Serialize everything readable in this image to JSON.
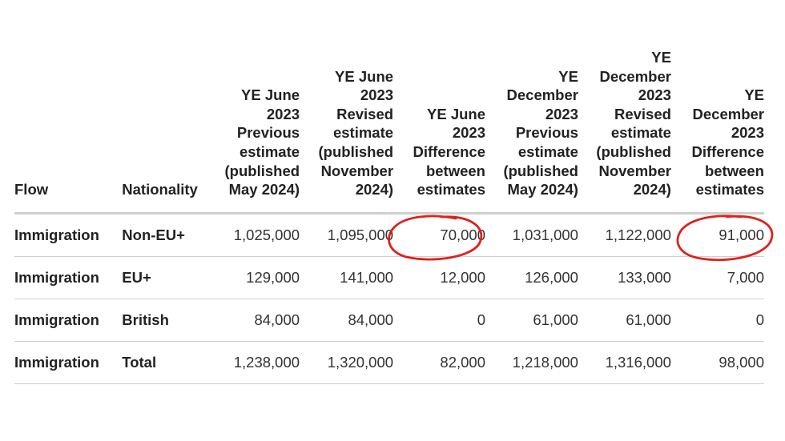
{
  "table": {
    "columns": [
      "Flow",
      "Nationality",
      "YE June 2023 Previous estimate (published May 2024)",
      "YE June 2023 Revised estimate (published November 2024)",
      "YE June 2023 Difference between estimates",
      "YE December 2023 Previous estimate (published May 2024)",
      "YE December 2023 Revised estimate (published November 2024)",
      "YE December 2023 Difference between estimates"
    ],
    "rows": [
      [
        "Immigration",
        "Non-EU+",
        "1,025,000",
        "1,095,000",
        "70,000",
        "1,031,000",
        "1,122,000",
        "91,000"
      ],
      [
        "Immigration",
        "EU+",
        "129,000",
        "141,000",
        "12,000",
        "126,000",
        "133,000",
        "7,000"
      ],
      [
        "Immigration",
        "British",
        "84,000",
        "84,000",
        "0",
        "61,000",
        "61,000",
        "0"
      ],
      [
        "Immigration",
        "Total",
        "1,238,000",
        "1,320,000",
        "82,000",
        "1,218,000",
        "1,316,000",
        "98,000"
      ]
    ]
  },
  "annotation_color": "#e0201b"
}
